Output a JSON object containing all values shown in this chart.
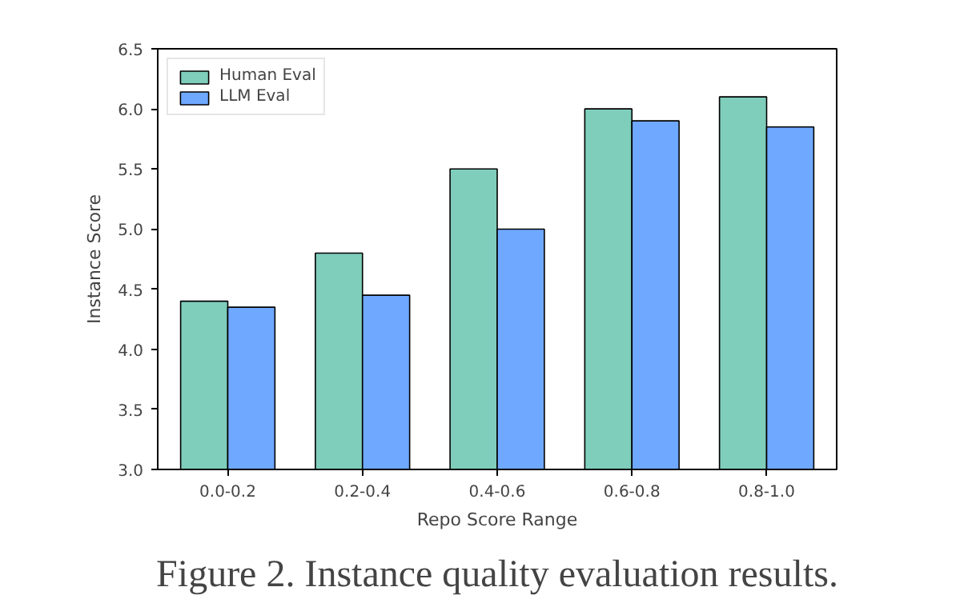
{
  "chart_data": {
    "type": "bar",
    "xlabel": "Repo Score Range",
    "ylabel": "Instance Score",
    "categories": [
      "0.0-0.2",
      "0.2-0.4",
      "0.4-0.6",
      "0.6-0.8",
      "0.8-1.0"
    ],
    "series": [
      {
        "name": "Human Eval",
        "color": "#7fcdbb",
        "values": [
          4.4,
          4.8,
          5.5,
          6.0,
          6.1
        ]
      },
      {
        "name": "LLM Eval",
        "color": "#6fa8ff",
        "values": [
          4.35,
          4.45,
          5.0,
          5.9,
          5.85
        ]
      }
    ],
    "ylim": [
      3.0,
      6.5
    ],
    "yticks": [
      {
        "value": 3.0,
        "label": "3.0"
      },
      3.5,
      {
        "value": 4.0,
        "label": "4.0"
      },
      4.5,
      {
        "value": 5.0,
        "label": "5.0"
      },
      5.5,
      {
        "value": 6.0,
        "label": "6.0"
      },
      6.5
    ],
    "legend": "top left",
    "grid": false,
    "annotations": [
      "Figure 2. Instance quality evaluation results."
    ]
  }
}
